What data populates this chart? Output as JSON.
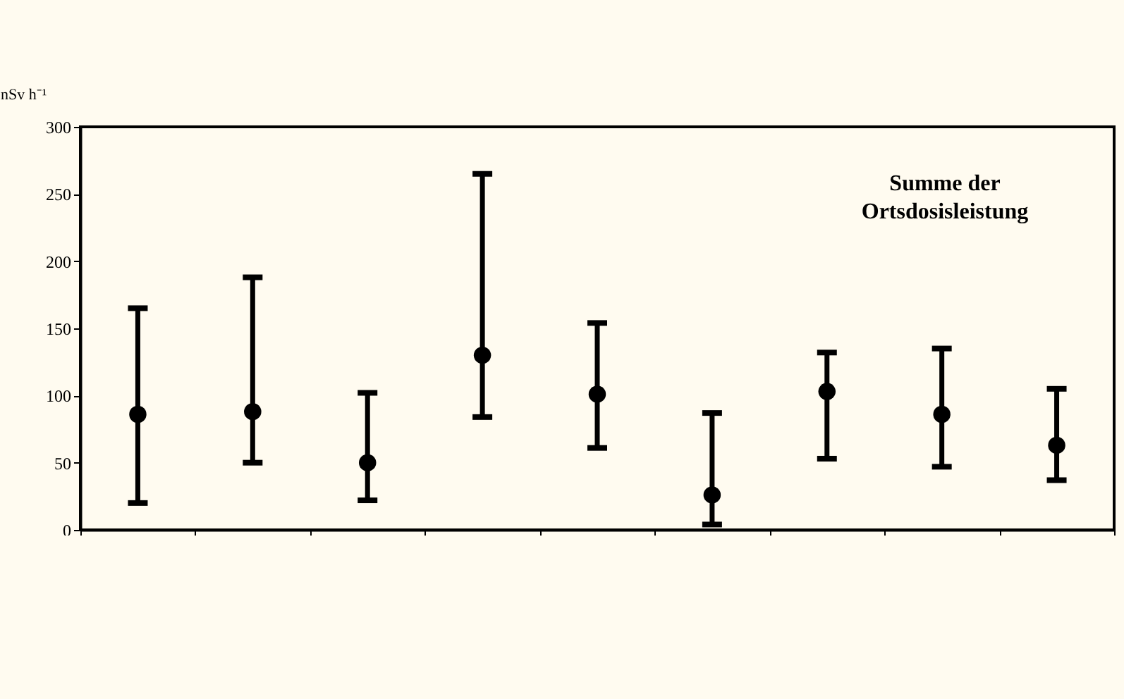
{
  "chart_data": {
    "type": "scatter",
    "ylabel": "nSv h⁻¹",
    "annotations": [
      "Summe der Ortsdosisleistung"
    ],
    "categories": [
      null,
      null,
      null,
      null,
      null,
      null,
      null,
      null,
      null
    ],
    "series": [
      {
        "color": "#000000",
        "values": [
          86,
          88,
          50,
          130,
          101,
          26,
          103,
          86,
          63
        ],
        "errors": [
          [
            20,
            165
          ],
          [
            50,
            188
          ],
          [
            22,
            102
          ],
          [
            84,
            265
          ],
          [
            61,
            154
          ],
          [
            4,
            87
          ],
          [
            53,
            132
          ],
          [
            47,
            135
          ],
          [
            37,
            105
          ]
        ]
      }
    ],
    "ylim": [
      0,
      300
    ],
    "yticks": [
      0,
      50,
      100,
      150,
      200,
      250,
      300
    ],
    "grid": false,
    "marker": "circle"
  }
}
